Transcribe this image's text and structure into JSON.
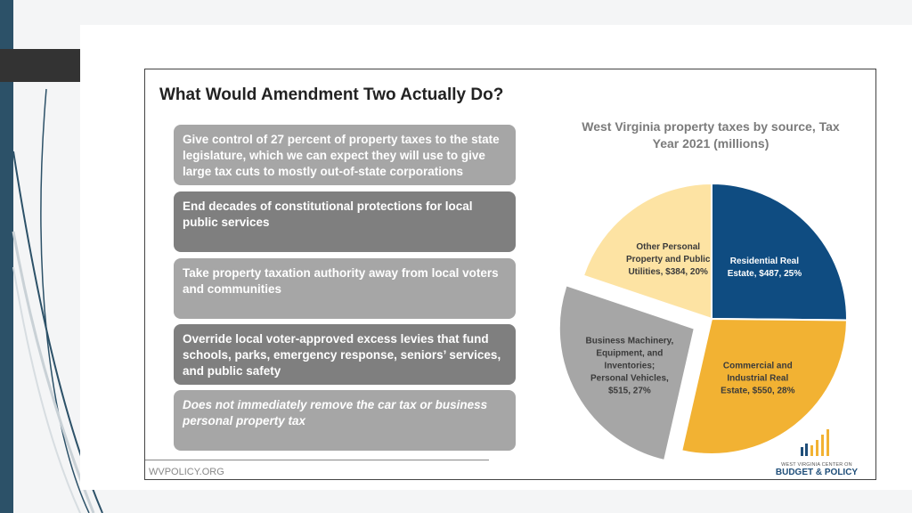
{
  "slide": {
    "title": "What Would Amendment Two Actually Do?",
    "points": [
      "Give control of 27 percent of property taxes to the state legislature, which we can expect they will use to give large tax cuts to mostly out-of-state corporations",
      "End decades of constitutional protections for local public services",
      "Take property taxation authority away from local voters and communities",
      "Override local voter-approved excess levies that fund schools, parks, emergency response, seniors’ services, and public safety",
      "Does not immediately remove the car tax or business personal property tax"
    ],
    "footer": "WVPOLICY.ORG",
    "logo": {
      "line1": "WEST VIRGINIA CENTER ON",
      "line2": "BUDGET & POLICY"
    }
  },
  "chart_data": {
    "type": "pie",
    "title": "West Virginia property taxes by source, Tax Year 2021 (millions)",
    "slices": [
      {
        "label": "Residential Real Estate, $487, 25%",
        "value": 487,
        "percent": 25,
        "color": "#0f4c81",
        "text_color": "#ffffff"
      },
      {
        "label": "Commercial and Industrial Real Estate, $550, 28%",
        "value": 550,
        "percent": 28,
        "color": "#f2b233",
        "text_color": "#3a3a3a"
      },
      {
        "label": "Business Machinery, Equipment, and Inventories; Personal Vehicles, $515, 27%",
        "value": 515,
        "percent": 27,
        "color": "#a6a6a6",
        "text_color": "#3a3a3a",
        "exploded": true
      },
      {
        "label": "Other Personal Property and Public Utilities, $384, 20%",
        "value": 384,
        "percent": 20,
        "color": "#fde3a3",
        "text_color": "#3a3a3a"
      }
    ]
  }
}
